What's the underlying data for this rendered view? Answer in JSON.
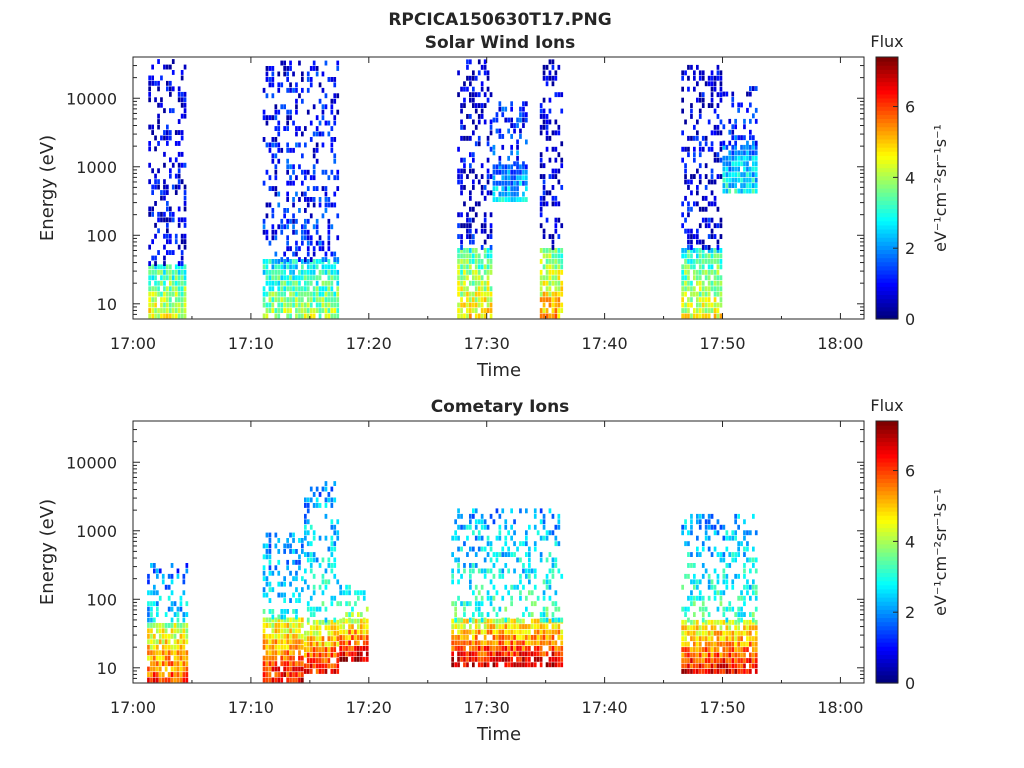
{
  "figure": {
    "title": "RPCICA150630T17.PNG"
  },
  "colormap": "jet",
  "chart_data": [
    {
      "type": "heatmap",
      "title": "Solar Wind Ions",
      "xlabel": "Time",
      "ylabel": "Energy (eV)",
      "x_ticks": [
        "17:00",
        "17:10",
        "17:20",
        "17:30",
        "17:40",
        "17:50",
        "18:00"
      ],
      "y_ticks": [
        "10",
        "100",
        "1000",
        "10000"
      ],
      "x_range_minutes": [
        0,
        62
      ],
      "y_range_eV": [
        6,
        40000
      ],
      "y_scale": "log",
      "colorbar": {
        "title": "Flux",
        "label": "eV⁻¹cm⁻²sr⁻¹s⁻¹",
        "ticks": [
          "0",
          "2",
          "4",
          "6"
        ],
        "range": [
          0,
          7.4
        ]
      },
      "bursts": [
        {
          "t": [
            1.3,
            4.5
          ],
          "low": [
            6,
            35
          ],
          "high": [
            35,
            35000
          ],
          "flux_low": 4.5,
          "flux_high": 0.8
        },
        {
          "t": [
            11.0,
            17.5
          ],
          "low": [
            6,
            40
          ],
          "high": [
            40,
            30000
          ],
          "flux_low": 4.0,
          "flux_high": 1.2
        },
        {
          "t": [
            27.5,
            30.5
          ],
          "low": [
            6,
            60
          ],
          "high": [
            60,
            38000
          ],
          "flux_low": 4.8,
          "flux_high": 0.8
        },
        {
          "t": [
            30.5,
            33.5
          ],
          "low": [
            300,
            1000
          ],
          "high": [
            1000,
            9000
          ],
          "flux_low": 2.5,
          "flux_high": 1.5
        },
        {
          "t": [
            34.5,
            36.5
          ],
          "low": [
            6,
            60
          ],
          "high": [
            60,
            38000
          ],
          "flux_low": 5.3,
          "flux_high": 0.8
        },
        {
          "t": [
            46.5,
            50.0
          ],
          "low": [
            6,
            60
          ],
          "high": [
            60,
            30000
          ],
          "flux_low": 4.5,
          "flux_high": 0.8
        },
        {
          "t": [
            50.0,
            53.0
          ],
          "low": [
            400,
            2000
          ],
          "high": [
            2000,
            15000
          ],
          "flux_low": 2.8,
          "flux_high": 1.2
        }
      ]
    },
    {
      "type": "heatmap",
      "title": "Cometary Ions",
      "xlabel": "Time",
      "ylabel": "Energy (eV)",
      "x_ticks": [
        "17:00",
        "17:10",
        "17:20",
        "17:30",
        "17:40",
        "17:50",
        "18:00"
      ],
      "y_ticks": [
        "10",
        "100",
        "1000",
        "10000"
      ],
      "x_range_minutes": [
        0,
        62
      ],
      "y_range_eV": [
        6,
        40000
      ],
      "y_scale": "log",
      "colorbar": {
        "title": "Flux",
        "label": "eV⁻¹cm⁻²sr⁻¹s⁻¹",
        "ticks": [
          "0",
          "2",
          "4",
          "6"
        ],
        "range": [
          0,
          7.4
        ]
      },
      "bursts": [
        {
          "t": [
            1.2,
            4.5
          ],
          "low": [
            6,
            45
          ],
          "high": [
            45,
            300
          ],
          "flux_low": 6.0,
          "flux_high": 2.5
        },
        {
          "t": [
            11.0,
            14.5
          ],
          "low": [
            6,
            50
          ],
          "high": [
            50,
            800
          ],
          "flux_low": 6.5,
          "flux_high": 2.8
        },
        {
          "t": [
            14.5,
            17.5
          ],
          "low": [
            8,
            45
          ],
          "high": [
            45,
            5000
          ],
          "flux_low": 6.3,
          "flux_high": 3.0
        },
        {
          "t": [
            17.5,
            20.0
          ],
          "low": [
            12,
            45
          ],
          "high": [
            45,
            150
          ],
          "flux_low": 6.8,
          "flux_high": 4.0
        },
        {
          "t": [
            27.0,
            36.5
          ],
          "low": [
            10,
            45
          ],
          "high": [
            45,
            1800
          ],
          "flux_low": 6.8,
          "flux_high": 3.2
        },
        {
          "t": [
            46.5,
            53.0
          ],
          "low": [
            8,
            45
          ],
          "high": [
            45,
            1500
          ],
          "flux_low": 6.5,
          "flux_high": 3.2
        }
      ]
    }
  ]
}
